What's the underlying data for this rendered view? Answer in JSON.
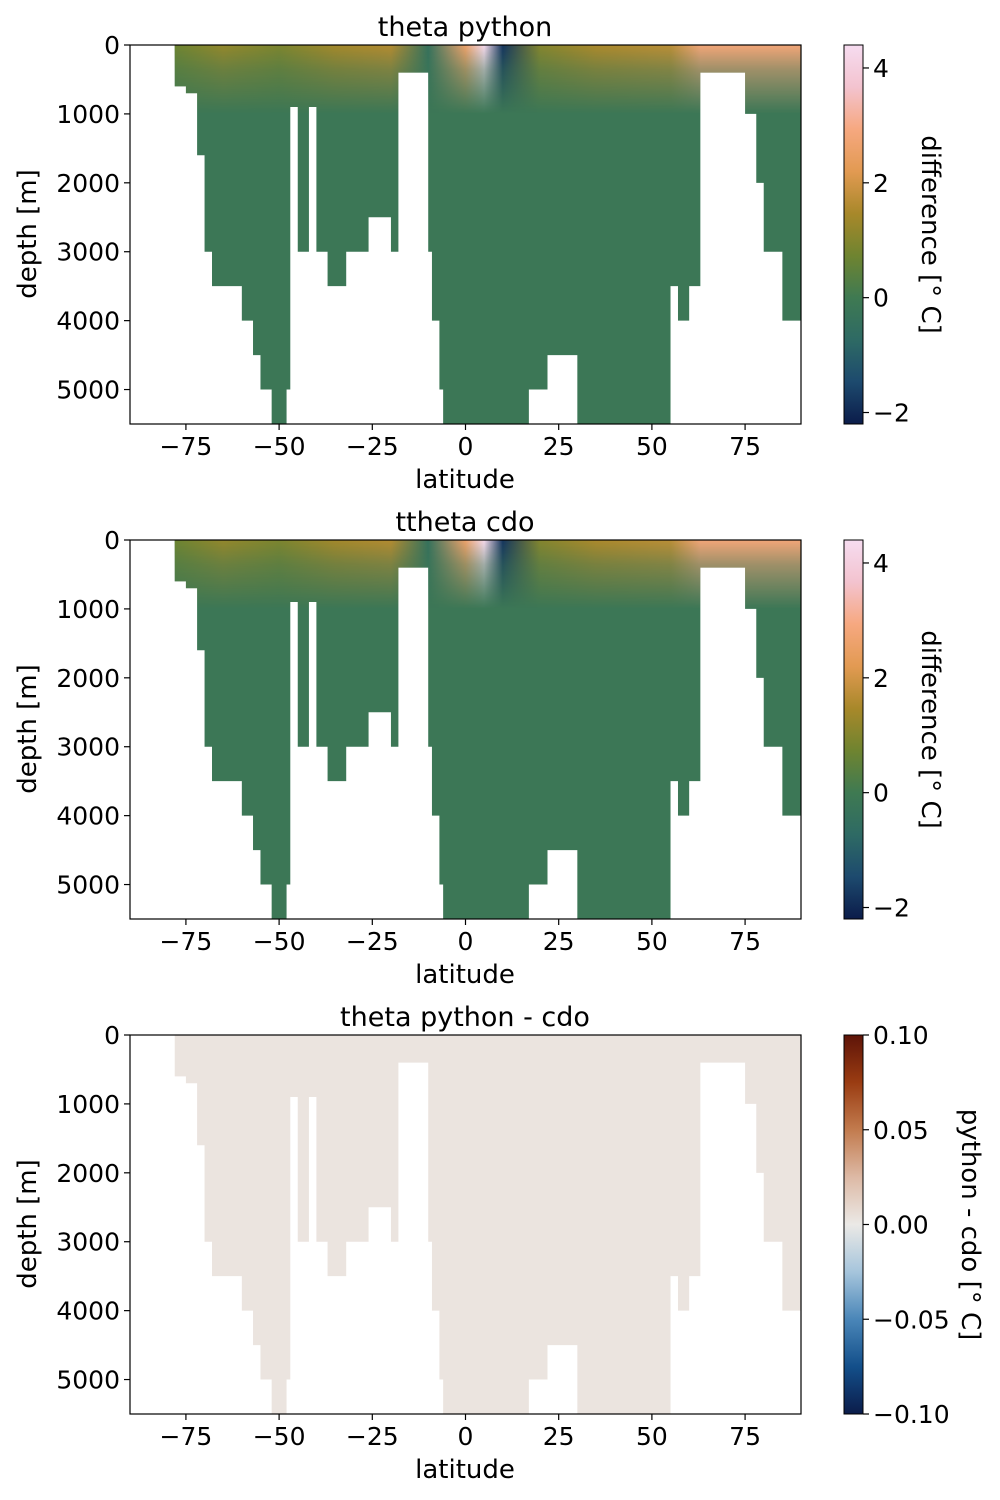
{
  "chart_data": [
    {
      "type": "heatmap",
      "title": "theta python",
      "xlabel": "latitude",
      "ylabel": "depth [m]",
      "xlim": [
        -90,
        90
      ],
      "ylim": [
        5500,
        0
      ],
      "xticks": [
        "−75",
        "−50",
        "−25",
        "0",
        "25",
        "50",
        "75"
      ],
      "xtick_values": [
        -75,
        -50,
        -25,
        0,
        25,
        50,
        75
      ],
      "yticks": [
        "0",
        "1000",
        "2000",
        "3000",
        "4000",
        "5000"
      ],
      "ytick_values": [
        0,
        1000,
        2000,
        3000,
        4000,
        5000
      ],
      "colorbar": {
        "label": "difference [° C]",
        "range": [
          -2.2,
          4.4
        ],
        "ticks": [
          "−2",
          "0",
          "2",
          "4"
        ],
        "tick_values": [
          -2,
          0,
          2,
          4
        ],
        "colormap": [
          "#0b1c4a",
          "#1d4a6e",
          "#2e6a64",
          "#3f7a52",
          "#6f8430",
          "#a8882a",
          "#e29a52",
          "#f6a880",
          "#f3c3cf",
          "#f6dcf0"
        ]
      },
      "field_summary": {
        "deep_value": -0.15,
        "surface_values": [
          {
            "lat": -78,
            "value": 0.7
          },
          {
            "lat": -65,
            "value": 1.2
          },
          {
            "lat": -50,
            "value": 0.9
          },
          {
            "lat": -35,
            "value": 1.4
          },
          {
            "lat": -20,
            "value": 1.6
          },
          {
            "lat": -10,
            "value": -0.4
          },
          {
            "lat": 0,
            "value": 2.6
          },
          {
            "lat": 5,
            "value": 4.3
          },
          {
            "lat": 10,
            "value": -1.8
          },
          {
            "lat": 20,
            "value": 1.0
          },
          {
            "lat": 35,
            "value": 1.5
          },
          {
            "lat": 55,
            "value": 1.7
          },
          {
            "lat": 63,
            "value": 2.8
          }
        ]
      },
      "ocean_bottom": [
        {
          "lat": -78,
          "depth": 600
        },
        {
          "lat": -75,
          "depth": 700
        },
        {
          "lat": -72,
          "depth": 1600
        },
        {
          "lat": -70,
          "depth": 3000
        },
        {
          "lat": -68,
          "depth": 3500
        },
        {
          "lat": -63,
          "depth": 3500
        },
        {
          "lat": -60,
          "depth": 4000
        },
        {
          "lat": -57,
          "depth": 4500
        },
        {
          "lat": -55,
          "depth": 5000
        },
        {
          "lat": -52,
          "depth": 5500
        },
        {
          "lat": -48,
          "depth": 5000
        },
        {
          "lat": -47,
          "depth": 900
        },
        {
          "lat": -45,
          "depth": 3000
        },
        {
          "lat": -42,
          "depth": 900
        },
        {
          "lat": -40,
          "depth": 3000
        },
        {
          "lat": -37,
          "depth": 3500
        },
        {
          "lat": -32,
          "depth": 3000
        },
        {
          "lat": -26,
          "depth": 2500
        },
        {
          "lat": -20,
          "depth": 3000
        },
        {
          "lat": -18,
          "depth": 400
        },
        {
          "lat": -10,
          "depth": 3000
        },
        {
          "lat": -9,
          "depth": 4000
        },
        {
          "lat": -7,
          "depth": 5000
        },
        {
          "lat": -6,
          "depth": 5500
        },
        {
          "lat": 17,
          "depth": 5000
        },
        {
          "lat": 22,
          "depth": 4500
        },
        {
          "lat": 30,
          "depth": 5500
        },
        {
          "lat": 37,
          "depth": 5500
        },
        {
          "lat": 52,
          "depth": 5500
        },
        {
          "lat": 55,
          "depth": 3500
        },
        {
          "lat": 57,
          "depth": 4000
        },
        {
          "lat": 60,
          "depth": 3500
        },
        {
          "lat": 62,
          "depth": 3500
        },
        {
          "lat": 63,
          "depth": 400
        },
        {
          "lat": 75,
          "depth": 1000
        },
        {
          "lat": 78,
          "depth": 2000
        },
        {
          "lat": 80,
          "depth": 3000
        },
        {
          "lat": 82,
          "depth": 3000
        },
        {
          "lat": 85,
          "depth": 4000
        },
        {
          "lat": 90,
          "depth": 4000
        }
      ]
    },
    {
      "type": "heatmap",
      "title": "ttheta cdo",
      "xlabel": "latitude",
      "ylabel": "depth [m]",
      "xlim": [
        -90,
        90
      ],
      "ylim": [
        5500,
        0
      ],
      "xticks": [
        "−75",
        "−50",
        "−25",
        "0",
        "25",
        "50",
        "75"
      ],
      "xtick_values": [
        -75,
        -50,
        -25,
        0,
        25,
        50,
        75
      ],
      "yticks": [
        "0",
        "1000",
        "2000",
        "3000",
        "4000",
        "5000"
      ],
      "ytick_values": [
        0,
        1000,
        2000,
        3000,
        4000,
        5000
      ],
      "colorbar": {
        "label": "difference [° C]",
        "range": [
          -2.2,
          4.4
        ],
        "ticks": [
          "−2",
          "0",
          "2",
          "4"
        ],
        "tick_values": [
          -2,
          0,
          2,
          4
        ],
        "colormap": [
          "#0b1c4a",
          "#1d4a6e",
          "#2e6a64",
          "#3f7a52",
          "#6f8430",
          "#a8882a",
          "#e29a52",
          "#f6a880",
          "#f3c3cf",
          "#f6dcf0"
        ]
      },
      "field_summary": {
        "deep_value": -0.15,
        "surface_values": [
          {
            "lat": -78,
            "value": 0.7
          },
          {
            "lat": -65,
            "value": 1.2
          },
          {
            "lat": -50,
            "value": 0.9
          },
          {
            "lat": -35,
            "value": 1.4
          },
          {
            "lat": -20,
            "value": 1.6
          },
          {
            "lat": -10,
            "value": -0.4
          },
          {
            "lat": 0,
            "value": 2.6
          },
          {
            "lat": 5,
            "value": 4.3
          },
          {
            "lat": 10,
            "value": -1.8
          },
          {
            "lat": 20,
            "value": 1.0
          },
          {
            "lat": 35,
            "value": 1.5
          },
          {
            "lat": 55,
            "value": 1.7
          },
          {
            "lat": 63,
            "value": 2.8
          }
        ]
      },
      "ocean_bottom": "same as theta python"
    },
    {
      "type": "heatmap",
      "title": "theta python - cdo",
      "xlabel": "latitude",
      "ylabel": "depth [m]",
      "xlim": [
        -90,
        90
      ],
      "ylim": [
        5500,
        0
      ],
      "xticks": [
        "−75",
        "−50",
        "−25",
        "0",
        "25",
        "50",
        "75"
      ],
      "xtick_values": [
        -75,
        -50,
        -25,
        0,
        25,
        50,
        75
      ],
      "yticks": [
        "0",
        "1000",
        "2000",
        "3000",
        "4000",
        "5000"
      ],
      "ytick_values": [
        0,
        1000,
        2000,
        3000,
        4000,
        5000
      ],
      "colorbar": {
        "label": "python - cdo [° C]",
        "range": [
          -0.1,
          0.1
        ],
        "ticks": [
          "0.10",
          "0.05",
          "0.00",
          "−0.05",
          "−0.10"
        ],
        "tick_values": [
          0.1,
          0.05,
          0.0,
          -0.05,
          -0.1
        ],
        "colormap": [
          "#0b1c4a",
          "#134f8a",
          "#4a86b8",
          "#a6c5dc",
          "#ebe9e6",
          "#ddb9a5",
          "#c27b4e",
          "#9a3c12",
          "#5e1408"
        ]
      },
      "field_summary": {
        "uniform_value": 0.0,
        "fill_color": "#ebe4df"
      },
      "ocean_bottom": "same as theta python"
    }
  ]
}
